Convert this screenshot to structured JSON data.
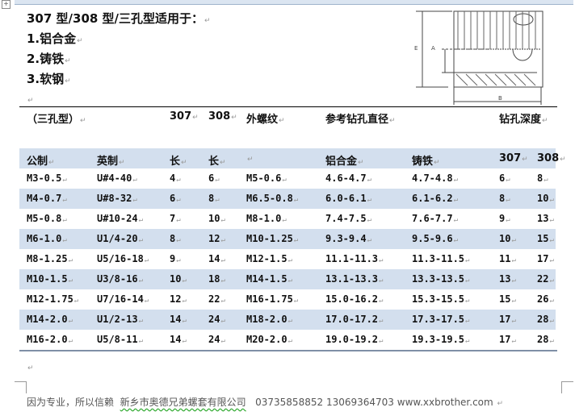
{
  "intro": {
    "title": "307 型/308 型/三孔型适用于：",
    "items": [
      "1.铝合金",
      "2.铸铁",
      "3.软钢"
    ]
  },
  "diagram": {
    "labels": [
      "E",
      "A",
      "B"
    ]
  },
  "group_header": {
    "type_label": "（三孔型）",
    "col_307": "307",
    "col_308": "308",
    "outer_thread": "外螺纹",
    "drill_diameter": "参考钻孔直径",
    "drill_depth": "钻孔深度"
  },
  "table": {
    "headers": [
      "公制",
      "英制",
      "长",
      "长",
      "",
      "铝合金",
      "铸铁",
      "307",
      "308"
    ],
    "rows": [
      [
        "M3-0.5",
        "U#4-40",
        "4",
        "6",
        "M5-0.6",
        "4.6-4.7",
        "4.7-4.8",
        "6",
        "8"
      ],
      [
        "M4-0.7",
        "U#8-32",
        "6",
        "8",
        "M6.5-0.8",
        "6.0-6.1",
        "6.1-6.2",
        "8",
        "10"
      ],
      [
        "M5-0.8",
        "U#10-24",
        "7",
        "10",
        "M8-1.0",
        "7.4-7.5",
        "7.6-7.7",
        "9",
        "13"
      ],
      [
        "M6-1.0",
        "U1/4-20",
        "8",
        "12",
        "M10-1.25",
        "9.3-9.4",
        "9.5-9.6",
        "10",
        "15"
      ],
      [
        "M8-1.25",
        "U5/16-18",
        "9",
        "14",
        "M12-1.5",
        "11.1-11.3",
        "11.3-11.5",
        "11",
        "17"
      ],
      [
        "M10-1.5",
        "U3/8-16",
        "10",
        "18",
        "M14-1.5",
        "13.1-13.3",
        "13.3-13.5",
        "13",
        "22"
      ],
      [
        "M12-1.75",
        "U7/16-14",
        "12",
        "22",
        "M16-1.75",
        "15.0-16.2",
        "15.3-15.5",
        "15",
        "26"
      ],
      [
        "M14-2.0",
        "U1/2-13",
        "14",
        "24",
        "M18-2.0",
        "17.0-17.2",
        "17.3-17.5",
        "17",
        "28"
      ],
      [
        "M16-2.0",
        "U5/8-11",
        "14",
        "24",
        "M20-2.0",
        "19.0-19.2",
        "19.3-19.5",
        "17",
        "28"
      ]
    ]
  },
  "footer": {
    "slogan": "因为专业，所以信赖",
    "company": "新乡市奥德兄弟螺套有限公司",
    "phone1": "03735858852",
    "phone2": "13069364703",
    "website": "www.xxbrother.com"
  },
  "colors": {
    "row_shade": "#d3dfee",
    "footer_text": "#555555"
  }
}
